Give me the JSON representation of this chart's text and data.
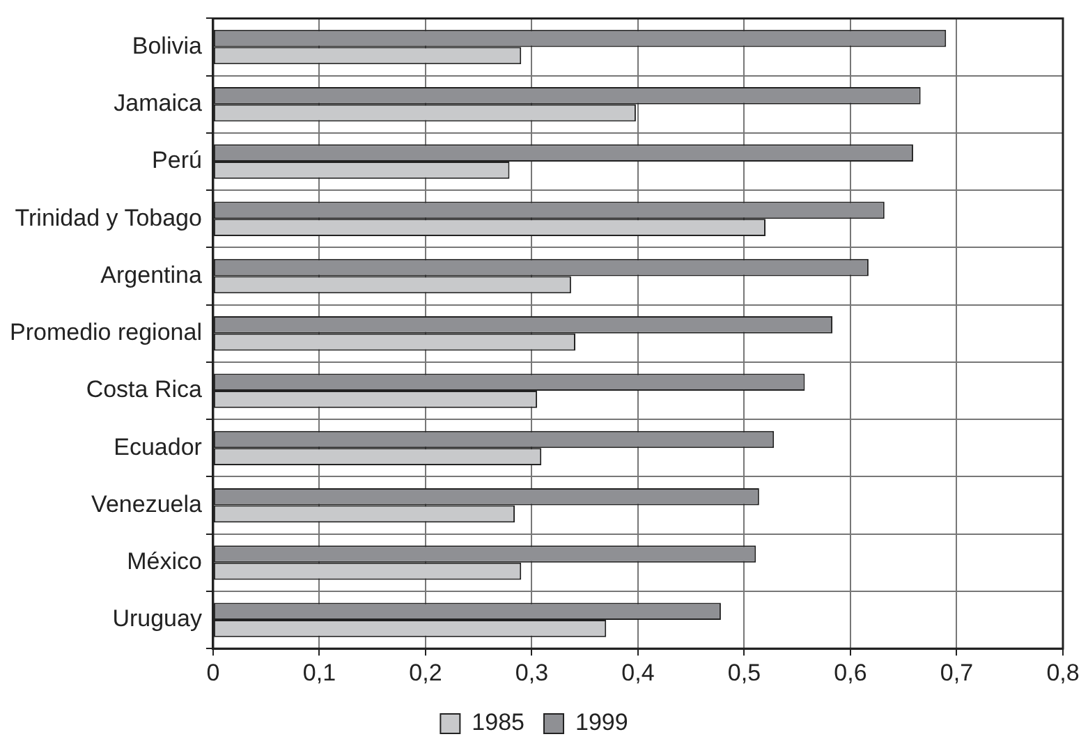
{
  "chart_data": {
    "type": "bar",
    "orientation": "horizontal",
    "categories": [
      "Bolivia",
      "Jamaica",
      "Perú",
      "Trinidad y Tobago",
      "Argentina",
      "Promedio regional",
      "Costa Rica",
      "Ecuador",
      "Venezuela",
      "México",
      "Uruguay"
    ],
    "series": [
      {
        "name": "1985",
        "color": "#c8c9cb",
        "values": [
          0.29,
          0.398,
          0.279,
          0.52,
          0.337,
          0.341,
          0.305,
          0.309,
          0.284,
          0.29,
          0.37
        ]
      },
      {
        "name": "1999",
        "color": "#8f9094",
        "values": [
          0.69,
          0.666,
          0.659,
          0.632,
          0.617,
          0.583,
          0.557,
          0.528,
          0.514,
          0.511,
          0.478
        ]
      }
    ],
    "xlim": [
      0,
      0.8
    ],
    "xticks": [
      {
        "value": 0,
        "label": "0"
      },
      {
        "value": 0.1,
        "label": "0,1"
      },
      {
        "value": 0.2,
        "label": "0,2"
      },
      {
        "value": 0.3,
        "label": "0,3"
      },
      {
        "value": 0.4,
        "label": "0,4"
      },
      {
        "value": 0.5,
        "label": "0,5"
      },
      {
        "value": 0.6,
        "label": "0,6"
      },
      {
        "value": 0.7,
        "label": "0,7"
      },
      {
        "value": 0.8,
        "label": "0,8"
      }
    ],
    "grid": true,
    "legend": "bottom"
  }
}
